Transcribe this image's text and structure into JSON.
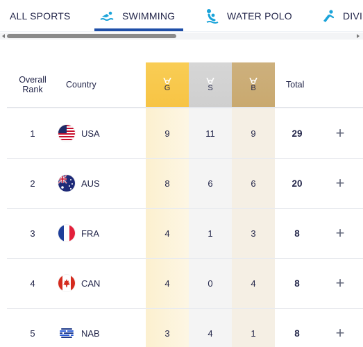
{
  "tabs": [
    {
      "label": "ALL SPORTS",
      "icon": "",
      "active": false
    },
    {
      "label": "SWIMMING",
      "icon": "swimming-icon",
      "active": true
    },
    {
      "label": "WATER POLO",
      "icon": "water-polo-icon",
      "active": false
    },
    {
      "label": "DIVI",
      "icon": "diving-icon",
      "active": false
    }
  ],
  "colors": {
    "accent": "#1f4fa8",
    "icon_blue": "#1aa3d9",
    "gold": "#f7c444",
    "silver": "#d2d2d2",
    "bronze": "#c9a96f"
  },
  "table": {
    "headers": {
      "rank": "Overall Rank",
      "country": "Country",
      "gold": "G",
      "silver": "S",
      "bronze": "B",
      "total": "Total"
    },
    "rows": [
      {
        "rank": "1",
        "country": "USA",
        "flag": "usa-flag-icon",
        "gold": "9",
        "silver": "11",
        "bronze": "9",
        "total": "29",
        "expand": "+"
      },
      {
        "rank": "2",
        "country": "AUS",
        "flag": "aus-flag-icon",
        "gold": "8",
        "silver": "6",
        "bronze": "6",
        "total": "20",
        "expand": "+"
      },
      {
        "rank": "3",
        "country": "FRA",
        "flag": "fra-flag-icon",
        "gold": "4",
        "silver": "1",
        "bronze": "3",
        "total": "8",
        "expand": "+"
      },
      {
        "rank": "4",
        "country": "CAN",
        "flag": "can-flag-icon",
        "gold": "4",
        "silver": "0",
        "bronze": "4",
        "total": "8",
        "expand": "+"
      },
      {
        "rank": "5",
        "country": "NAB",
        "flag": "nab-flag-icon",
        "gold": "3",
        "silver": "4",
        "bronze": "1",
        "total": "8",
        "expand": "+"
      }
    ]
  }
}
